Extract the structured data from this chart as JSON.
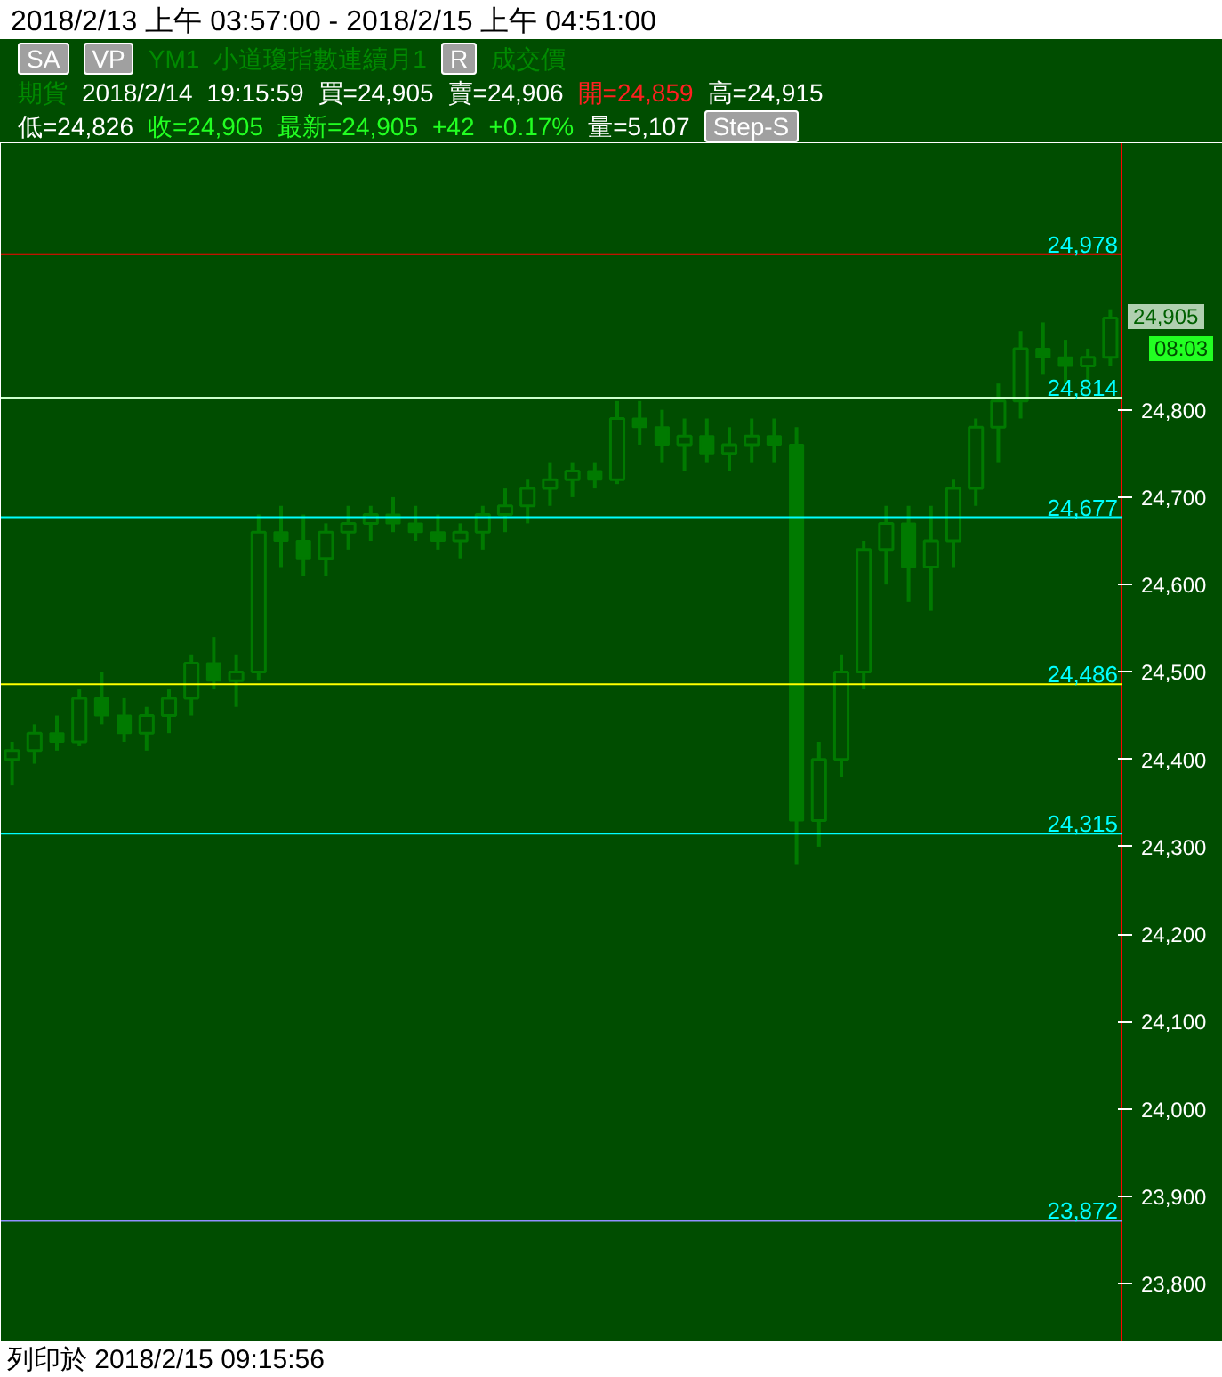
{
  "chart_data": {
    "type": "candlestick",
    "title": "2018/2/13 上午 03:57:00 - 2018/2/15 上午 04:51:00",
    "categories": [
      null,
      null,
      null,
      null,
      null,
      null,
      null,
      null,
      null,
      null,
      null,
      null,
      null,
      null,
      null,
      null,
      null,
      null,
      null,
      null,
      null,
      null,
      null,
      null,
      null,
      null,
      null,
      null,
      null,
      null,
      null,
      null,
      null,
      null,
      null,
      null,
      null,
      null,
      null,
      null,
      null,
      null,
      null,
      null,
      null,
      null,
      null,
      null,
      null,
      null
    ],
    "color": "#007a00",
    "ohlc": [
      [
        24400,
        24420,
        24370,
        24410
      ],
      [
        24410,
        24440,
        24395,
        24430
      ],
      [
        24430,
        24450,
        24410,
        24420
      ],
      [
        24420,
        24480,
        24415,
        24470
      ],
      [
        24470,
        24500,
        24440,
        24450
      ],
      [
        24450,
        24470,
        24420,
        24430
      ],
      [
        24430,
        24460,
        24410,
        24450
      ],
      [
        24450,
        24480,
        24430,
        24470
      ],
      [
        24470,
        24520,
        24450,
        24510
      ],
      [
        24510,
        24540,
        24480,
        24490
      ],
      [
        24490,
        24520,
        24460,
        24500
      ],
      [
        24500,
        24680,
        24490,
        24660
      ],
      [
        24660,
        24690,
        24620,
        24650
      ],
      [
        24650,
        24680,
        24610,
        24630
      ],
      [
        24630,
        24670,
        24610,
        24660
      ],
      [
        24660,
        24690,
        24640,
        24670
      ],
      [
        24670,
        24690,
        24650,
        24680
      ],
      [
        24680,
        24700,
        24660,
        24670
      ],
      [
        24670,
        24690,
        24650,
        24660
      ],
      [
        24660,
        24680,
        24640,
        24650
      ],
      [
        24650,
        24670,
        24630,
        24660
      ],
      [
        24660,
        24690,
        24640,
        24680
      ],
      [
        24680,
        24710,
        24660,
        24690
      ],
      [
        24690,
        24720,
        24670,
        24710
      ],
      [
        24710,
        24740,
        24690,
        24720
      ],
      [
        24720,
        24740,
        24700,
        24730
      ],
      [
        24730,
        24740,
        24710,
        24720
      ],
      [
        24720,
        24810,
        24715,
        24790
      ],
      [
        24790,
        24810,
        24760,
        24780
      ],
      [
        24780,
        24800,
        24740,
        24760
      ],
      [
        24760,
        24790,
        24730,
        24770
      ],
      [
        24770,
        24790,
        24740,
        24750
      ],
      [
        24750,
        24780,
        24730,
        24760
      ],
      [
        24760,
        24790,
        24740,
        24770
      ],
      [
        24770,
        24790,
        24740,
        24760
      ],
      [
        24760,
        24780,
        24280,
        24330
      ],
      [
        24330,
        24420,
        24300,
        24400
      ],
      [
        24400,
        24520,
        24380,
        24500
      ],
      [
        24500,
        24650,
        24480,
        24640
      ],
      [
        24640,
        24690,
        24600,
        24670
      ],
      [
        24670,
        24690,
        24580,
        24620
      ],
      [
        24620,
        24690,
        24570,
        24650
      ],
      [
        24650,
        24720,
        24620,
        24710
      ],
      [
        24710,
        24790,
        24690,
        24780
      ],
      [
        24780,
        24830,
        24740,
        24810
      ],
      [
        24810,
        24890,
        24790,
        24870
      ],
      [
        24870,
        24900,
        24840,
        24860
      ],
      [
        24860,
        24880,
        24830,
        24850
      ],
      [
        24850,
        24870,
        24830,
        24860
      ],
      [
        24860,
        24915,
        24850,
        24905
      ]
    ],
    "ylim": [
      23733,
      25105
    ],
    "yticks": [
      {
        "value": 23800,
        "label": "23,800"
      },
      {
        "value": 23900,
        "label": "23,900"
      },
      {
        "value": 24000,
        "label": "24,000"
      },
      {
        "value": 24100,
        "label": "24,100"
      },
      {
        "value": 24200,
        "label": "24,200"
      },
      {
        "value": 24300,
        "label": "24,300"
      },
      {
        "value": 24400,
        "label": "24,400"
      },
      {
        "value": 24500,
        "label": "24,500"
      },
      {
        "value": 24600,
        "label": "24,600"
      },
      {
        "value": 24700,
        "label": "24,700"
      },
      {
        "value": 24800,
        "label": "24,800"
      }
    ],
    "tick_labels": "y",
    "ref_lines": [
      {
        "axis": "y",
        "value": 24978,
        "label": "24,978",
        "color": "#ff0000"
      },
      {
        "axis": "y",
        "value": 24814,
        "label": "24,814",
        "color": "#ccffcc"
      },
      {
        "axis": "y",
        "value": 24677,
        "label": "24,677",
        "color": "#00ffff"
      },
      {
        "axis": "y",
        "value": 24486,
        "label": "24,486",
        "color": "#ffff00"
      },
      {
        "axis": "y",
        "value": 24315,
        "label": "24,315",
        "color": "#00ffff"
      },
      {
        "axis": "y",
        "value": 23872,
        "label": "23,872",
        "color": "#9090ff"
      }
    ],
    "annotations": [
      "SA",
      "VP",
      "YM1",
      "小道瓊指數連續月1",
      "R",
      "成交價",
      "期貨",
      "2018/2/14",
      "19:15:59",
      "買=24,905",
      "賣=24,906",
      "開=24,859",
      "高=24,915",
      "低=24,826",
      "收=24,905",
      "最新=24,905",
      "+42",
      "+0.17%",
      "量=5,107",
      "Step-S",
      "24,905",
      "08:03",
      "列印於 2018/2/15 09:15:56"
    ]
  }
}
